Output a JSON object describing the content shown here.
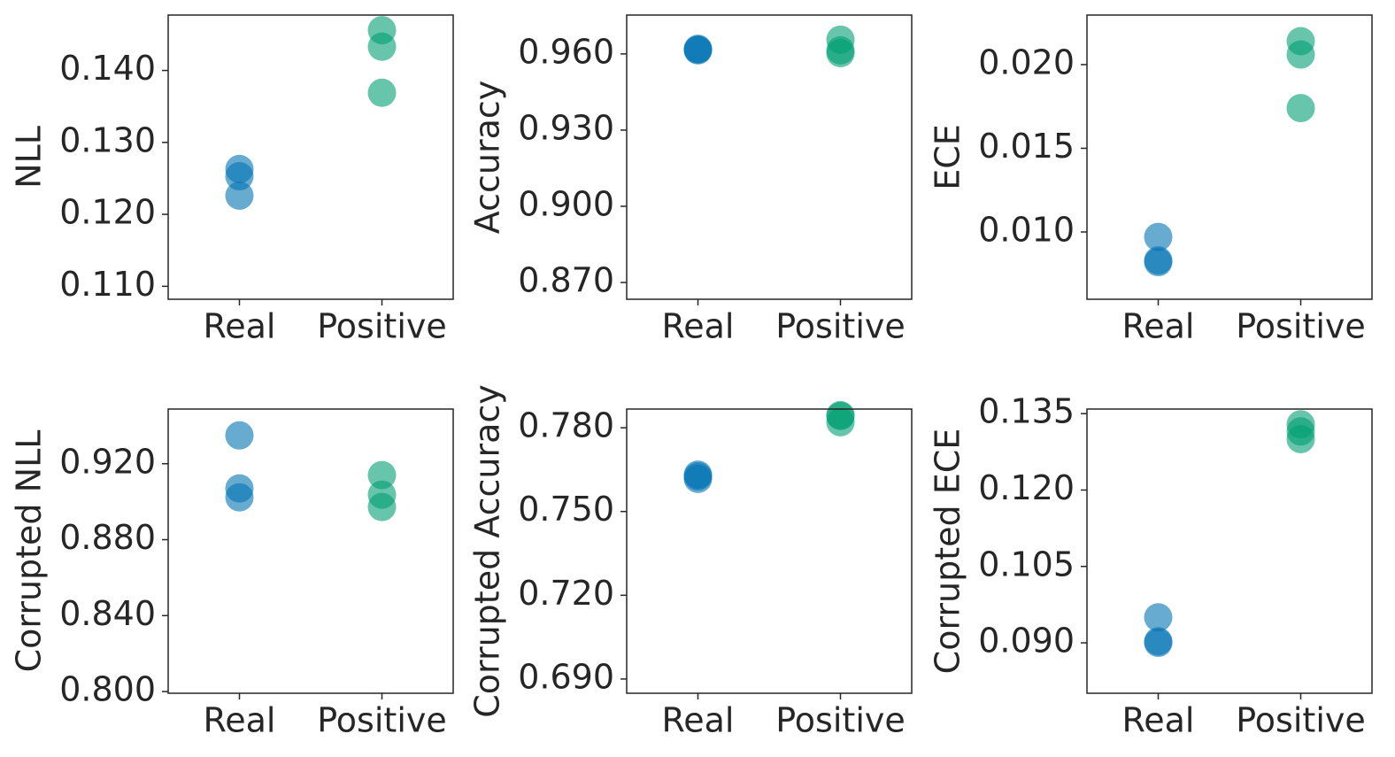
{
  "chart_data": [
    {
      "type": "scatter",
      "ylabel": "NLL",
      "categories": [
        "Real",
        "Positive"
      ],
      "colors": [
        "#0173b2",
        "#029e73"
      ],
      "values": [
        [
          0.1263,
          0.1253,
          0.1226
        ],
        [
          0.1456,
          0.1433,
          0.1369
        ]
      ],
      "ylim": [
        0.1082,
        0.1477
      ],
      "yticks": [
        {
          "value": 0.11,
          "label": "0.110"
        },
        {
          "value": 0.12,
          "label": "0.120"
        },
        {
          "value": 0.13,
          "label": "0.130"
        },
        {
          "value": 0.14,
          "label": "0.140"
        }
      ]
    },
    {
      "type": "scatter",
      "ylabel": "Accuracy",
      "categories": [
        "Real",
        "Positive"
      ],
      "colors": [
        "#0173b2",
        "#029e73"
      ],
      "values": [
        [
          0.962,
          0.9614,
          0.9617
        ],
        [
          0.9656,
          0.9614,
          0.9603
        ]
      ],
      "ylim": [
        0.8634,
        0.9753
      ],
      "yticks": [
        {
          "value": 0.87,
          "label": "0.870"
        },
        {
          "value": 0.9,
          "label": "0.900"
        },
        {
          "value": 0.93,
          "label": "0.930"
        },
        {
          "value": 0.96,
          "label": "0.960"
        }
      ]
    },
    {
      "type": "scatter",
      "ylabel": "ECE",
      "categories": [
        "Real",
        "Positive"
      ],
      "colors": [
        "#0173b2",
        "#029e73"
      ],
      "values": [
        [
          0.0097,
          0.0083,
          0.0082
        ],
        [
          0.0214,
          0.0206,
          0.0174
        ]
      ],
      "ylim": [
        0.00598,
        0.02296
      ],
      "yticks": [
        {
          "value": 0.01,
          "label": "0.010"
        },
        {
          "value": 0.015,
          "label": "0.015"
        },
        {
          "value": 0.02,
          "label": "0.020"
        }
      ]
    },
    {
      "type": "scatter",
      "ylabel": "Corrupted NLL",
      "categories": [
        "Real",
        "Positive"
      ],
      "colors": [
        "#0173b2",
        "#029e73"
      ],
      "values": [
        [
          0.9349,
          0.907,
          0.9023
        ],
        [
          0.914,
          0.9037,
          0.8972
        ]
      ],
      "ylim": [
        0.7991,
        0.9488
      ],
      "yticks": [
        {
          "value": 0.8,
          "label": "0.800"
        },
        {
          "value": 0.84,
          "label": "0.840"
        },
        {
          "value": 0.88,
          "label": "0.880"
        },
        {
          "value": 0.92,
          "label": "0.920"
        }
      ]
    },
    {
      "type": "scatter",
      "ylabel": "Corrupted Accuracy",
      "categories": [
        "Real",
        "Positive"
      ],
      "colors": [
        "#0173b2",
        "#029e73"
      ],
      "values": [
        [
          0.7632,
          0.7626,
          0.7617
        ],
        [
          0.7845,
          0.7842,
          0.782
        ]
      ],
      "ylim": [
        0.6849,
        0.7867
      ],
      "yticks": [
        {
          "value": 0.69,
          "label": "0.690"
        },
        {
          "value": 0.72,
          "label": "0.720"
        },
        {
          "value": 0.75,
          "label": "0.750"
        },
        {
          "value": 0.78,
          "label": "0.780"
        }
      ]
    },
    {
      "type": "scatter",
      "ylabel": "Corrupted ECE",
      "categories": [
        "Real",
        "Positive"
      ],
      "colors": [
        "#0173b2",
        "#029e73"
      ],
      "values": [
        [
          0.095,
          0.0903,
          0.09
        ],
        [
          0.1329,
          0.1315,
          0.13
        ]
      ],
      "ylim": [
        0.0801,
        0.1359
      ],
      "yticks": [
        {
          "value": 0.09,
          "label": "0.090"
        },
        {
          "value": 0.105,
          "label": "0.105"
        },
        {
          "value": 0.12,
          "label": "0.120"
        },
        {
          "value": 0.135,
          "label": "0.135"
        }
      ]
    }
  ]
}
